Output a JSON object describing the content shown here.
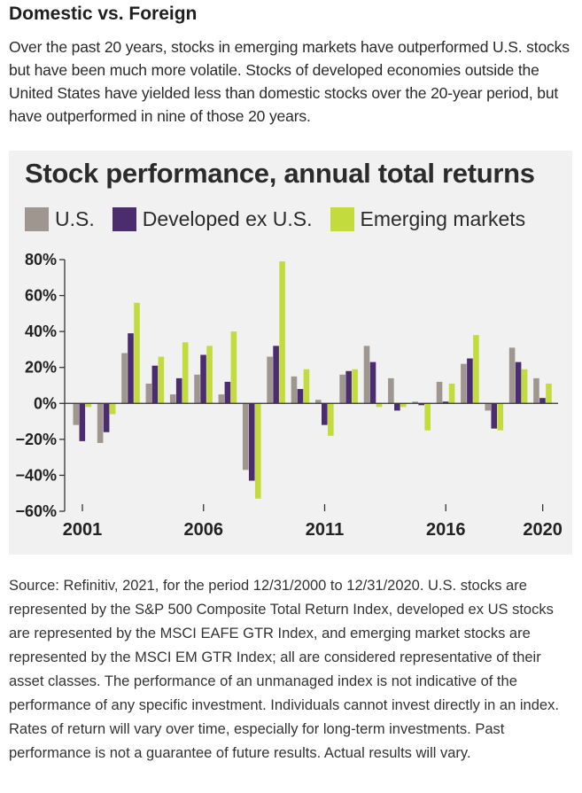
{
  "heading": "Domestic vs. Foreign",
  "intro": "Over the past 20 years, stocks in emerging markets have outperformed U.S. stocks but have been much more volatile. Stocks of developed economies outside the United States have yielded less than domestic stocks over the 20-year period, but have outperformed in nine of those 20 years.",
  "chart_data": {
    "type": "bar",
    "title": "Stock performance, annual total returns",
    "xlabel": "",
    "ylabel": "",
    "categories": [
      "2001",
      "2002",
      "2003",
      "2004",
      "2005",
      "2006",
      "2007",
      "2008",
      "2009",
      "2010",
      "2011",
      "2012",
      "2013",
      "2014",
      "2015",
      "2016",
      "2017",
      "2018",
      "2019",
      "2020"
    ],
    "x_tick_labels": [
      "2001",
      "2006",
      "2011",
      "2016",
      "2020"
    ],
    "y_tick_labels": [
      "80%",
      "60%",
      "40%",
      "20%",
      "0%",
      "−20%",
      "−40%",
      "−60%"
    ],
    "y_ticks": [
      80,
      60,
      40,
      20,
      0,
      -20,
      -40,
      -60
    ],
    "ylim": [
      -60,
      80
    ],
    "grid": false,
    "legend_position": "top-left",
    "series": [
      {
        "name": "U.S.",
        "color": "#a09690",
        "values": [
          -12,
          -22,
          28,
          11,
          5,
          16,
          5,
          -37,
          26,
          15,
          2,
          16,
          32,
          14,
          1,
          12,
          22,
          -4,
          31,
          14
        ]
      },
      {
        "name": "Developed ex U.S.",
        "color": "#4b2c6e",
        "values": [
          -21,
          -16,
          39,
          21,
          14,
          27,
          12,
          -43,
          32,
          8,
          -12,
          18,
          23,
          -4,
          -1,
          1,
          25,
          -14,
          23,
          3
        ]
      },
      {
        "name": "Emerging markets",
        "color": "#c3db3c",
        "values": [
          -2,
          -6,
          56,
          26,
          34,
          32,
          40,
          -53,
          79,
          19,
          -18,
          19,
          -2,
          -2,
          -15,
          11,
          38,
          -15,
          19,
          11
        ]
      }
    ]
  },
  "source": "Source: Refinitiv, 2021, for the period 12/31/2000 to 12/31/2020. U.S. stocks are represented by the S&P 500 Composite Total Return Index, developed ex US stocks are represented by the MSCI EAFE GTR Index, and emerging market stocks are represented by the MSCI EM GTR Index; all are considered representative of their asset classes. The performance of an unmanaged index is not indicative of the performance of any specific investment. Individuals cannot invest directly in an index. Rates of return will vary over time, especially for long-term investments. Past performance is not a guarantee of future results. Actual results will vary."
}
